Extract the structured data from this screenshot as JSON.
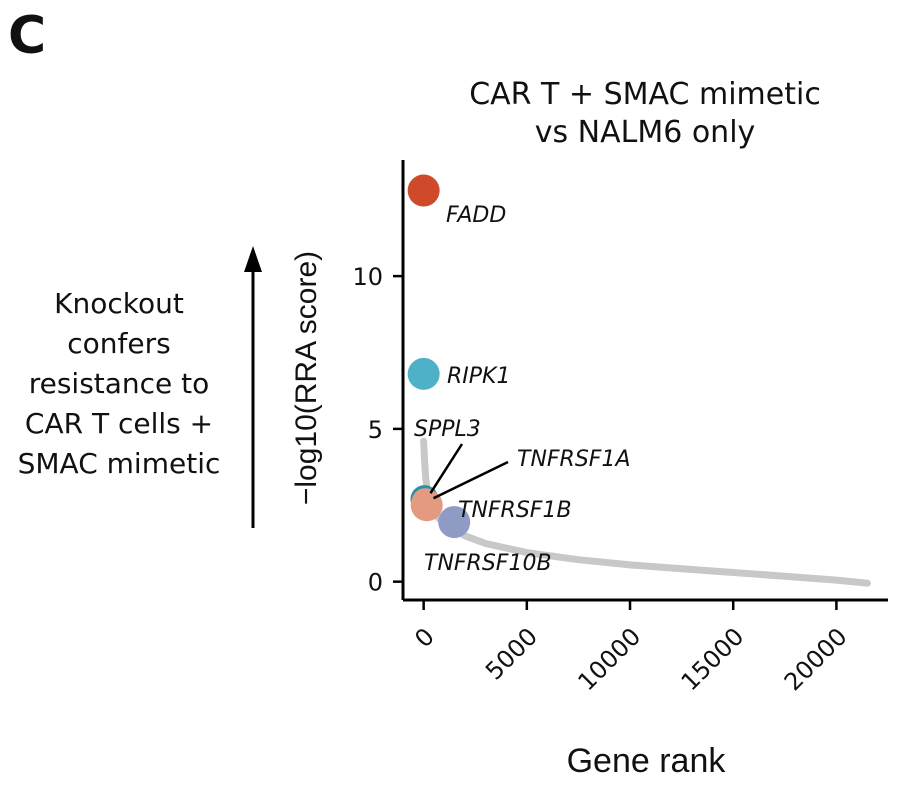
{
  "panel_letter": "C",
  "title_lines": [
    "CAR T + SMAC mimetic",
    "vs NALM6 only"
  ],
  "annotation_lines": [
    "Knockout",
    "confers",
    "resistance to",
    "CAR T cells +",
    "SMAC mimetic"
  ],
  "colors": {
    "curve": "#c8c8c8",
    "axis": "#000000",
    "FADD": "#cf4a2a",
    "RIPK1": "#4fb1c8",
    "SPPL3": "#2f8fa6",
    "TNFRSF1A": "#e7a08a",
    "TNFRSF1B": "#e39a80",
    "TNFRSF10B": "#8e9bc4"
  },
  "chart_data": {
    "type": "scatter",
    "title": "CAR T + SMAC mimetic vs NALM6 only",
    "xlabel": "Gene rank",
    "ylabel": "−log10(RRA score)",
    "xlim": [
      -1000,
      22500
    ],
    "ylim": [
      -0.6,
      13.8
    ],
    "xticks": [
      0,
      5000,
      10000,
      15000,
      20000
    ],
    "xtick_labels": [
      "0",
      "5000",
      "10000",
      "15000",
      "20000"
    ],
    "yticks": [
      0,
      5,
      10
    ],
    "ytick_labels": [
      "0",
      "5",
      "10"
    ],
    "grid": false,
    "background_curve": {
      "x": [
        0,
        50,
        100,
        200,
        400,
        700,
        1000,
        2000,
        3000,
        5000,
        7500,
        10000,
        12500,
        15000,
        17500,
        20000,
        21500
      ],
      "y": [
        4.6,
        3.9,
        3.4,
        2.9,
        2.4,
        2.1,
        1.9,
        1.5,
        1.25,
        0.95,
        0.72,
        0.55,
        0.42,
        0.3,
        0.18,
        0.05,
        -0.05
      ]
    },
    "highlighted_genes": [
      {
        "gene": "FADD",
        "x": 0,
        "y": 12.8
      },
      {
        "gene": "RIPK1",
        "x": 1,
        "y": 6.8
      },
      {
        "gene": "SPPL3",
        "x": 40,
        "y": 2.7
      },
      {
        "gene": "TNFRSF1A",
        "x": 90,
        "y": 2.6
      },
      {
        "gene": "TNFRSF1B",
        "x": 150,
        "y": 2.5
      },
      {
        "gene": "TNFRSF10B",
        "x": 900,
        "y": 1.95
      }
    ]
  }
}
